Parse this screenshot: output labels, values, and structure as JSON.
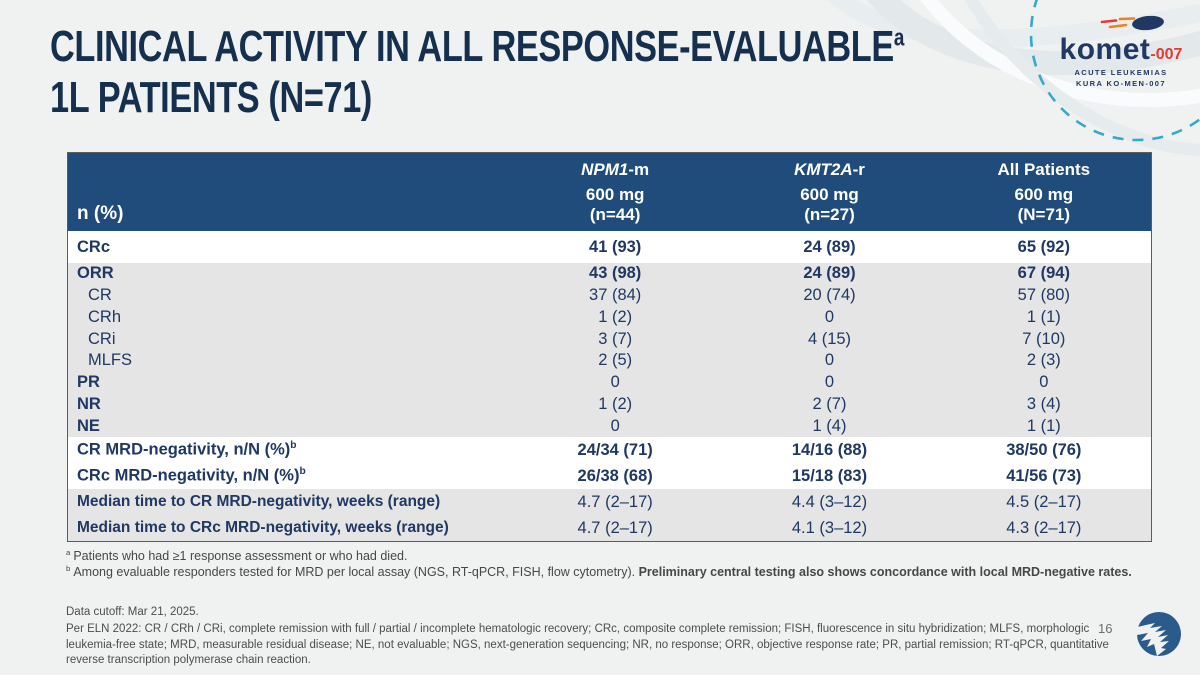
{
  "colors": {
    "header_blue": "#204C7C",
    "navy_text": "#1F3864",
    "title_navy": "#15304F",
    "stripe_gray": "#E6E5E5",
    "accent_red": "#E8392E",
    "teal_dash": "#35A9CC",
    "background": "#F0F1F1"
  },
  "slide": {
    "title_line1": "CLINICAL ACTIVITY IN ALL RESPONSE-EVALUABLE",
    "title_sup": "a",
    "title_line2": "1L PATIENTS (N=71)",
    "page_number": "16"
  },
  "logo": {
    "wordmark": "komet",
    "suffix": "-007",
    "tagline_line1": "ACUTE LEUKEMIAS",
    "tagline_line2": "KURA KO-MEN-007"
  },
  "table": {
    "corner_label": "n (%)",
    "columns": [
      {
        "group_italic_part": "NPM1",
        "group_plain_part": "-m",
        "dose": "600 mg",
        "enrollment": "(n=44)"
      },
      {
        "group_italic_part": "KMT2A",
        "group_plain_part": "-r",
        "dose": "600 mg",
        "enrollment": "(n=27)"
      },
      {
        "group_italic_part": "",
        "group_plain_part": "All Patients",
        "dose": "600 mg",
        "enrollment": "(N=71)"
      }
    ],
    "row_groups": [
      {
        "shade": "white",
        "rows": [
          {
            "label": "CRc",
            "bold": true,
            "bold_values": true,
            "values": [
              "41 (93)",
              "24 (89)",
              "65 (92)"
            ]
          }
        ]
      },
      {
        "shade": "gray",
        "rows": [
          {
            "label": "ORR",
            "bold": true,
            "bold_values": true,
            "values": [
              "43 (98)",
              "24 (89)",
              "67 (94)"
            ]
          },
          {
            "label": "CR",
            "indent": true,
            "values": [
              "37 (84)",
              "20 (74)",
              "57 (80)"
            ]
          },
          {
            "label": "CRh",
            "indent": true,
            "values": [
              "1 (2)",
              "0",
              "1 (1)"
            ]
          },
          {
            "label": "CRi",
            "indent": true,
            "values": [
              "3 (7)",
              "4 (15)",
              "7 (10)"
            ]
          },
          {
            "label": "MLFS",
            "indent": true,
            "values": [
              "2 (5)",
              "0",
              "2 (3)"
            ]
          },
          {
            "label": "PR",
            "bold": true,
            "values": [
              "0",
              "0",
              "0"
            ]
          },
          {
            "label": "NR",
            "bold": true,
            "values": [
              "1 (2)",
              "2 (7)",
              "3 (4)"
            ]
          },
          {
            "label": "NE",
            "bold": true,
            "values": [
              "0",
              "1 (4)",
              "1 (1)"
            ]
          }
        ]
      },
      {
        "shade": "white",
        "rows": [
          {
            "label": "CR MRD-negativity, n/N (%)",
            "sup": "b",
            "bold": true,
            "bold_values": true,
            "values": [
              "24/34 (71)",
              "14/16 (88)",
              "38/50 (76)"
            ]
          },
          {
            "label": "CRc MRD-negativity, n/N (%)",
            "sup": "b",
            "bold": true,
            "bold_values": true,
            "values": [
              "26/38 (68)",
              "15/18 (83)",
              "41/56 (73)"
            ]
          }
        ]
      },
      {
        "shade": "gray",
        "rows": [
          {
            "label": "Median time to CR MRD-negativity, weeks (range)",
            "bold": true,
            "values": [
              "4.7 (2–17)",
              "4.4 (3–12)",
              "4.5 (2–17)"
            ]
          },
          {
            "label": "Median time to CRc MRD-negativity, weeks (range)",
            "bold": true,
            "values": [
              "4.7 (2–17)",
              "4.1 (3–12)",
              "4.3 (2–17)"
            ]
          }
        ]
      }
    ]
  },
  "footnotes": {
    "a_sup": "a",
    "a_text": "Patients who had ≥1 response assessment or who had died.",
    "b_sup": "b",
    "b_text": "Among evaluable responders tested for MRD per local assay (NGS, RT-qPCR, FISH, flow cytometry). ",
    "b_bold": "Preliminary central testing also shows concordance with local MRD-negative rates."
  },
  "footer": {
    "cutoff": "Data cutoff: Mar 21, 2025.",
    "definitions": "Per ELN 2022: CR / CRh / CRi, complete remission with full / partial / incomplete hematologic recovery; CRc, composite complete remission; FISH, fluorescence in situ hybridization; MLFS, morphologic leukemia-free state; MRD, measurable residual disease; NE, not evaluable; NGS, next-generation sequencing; NR, no response; ORR, objective response rate; PR, partial remission; RT-qPCR, quantitative reverse transcription polymerase chain reaction."
  }
}
